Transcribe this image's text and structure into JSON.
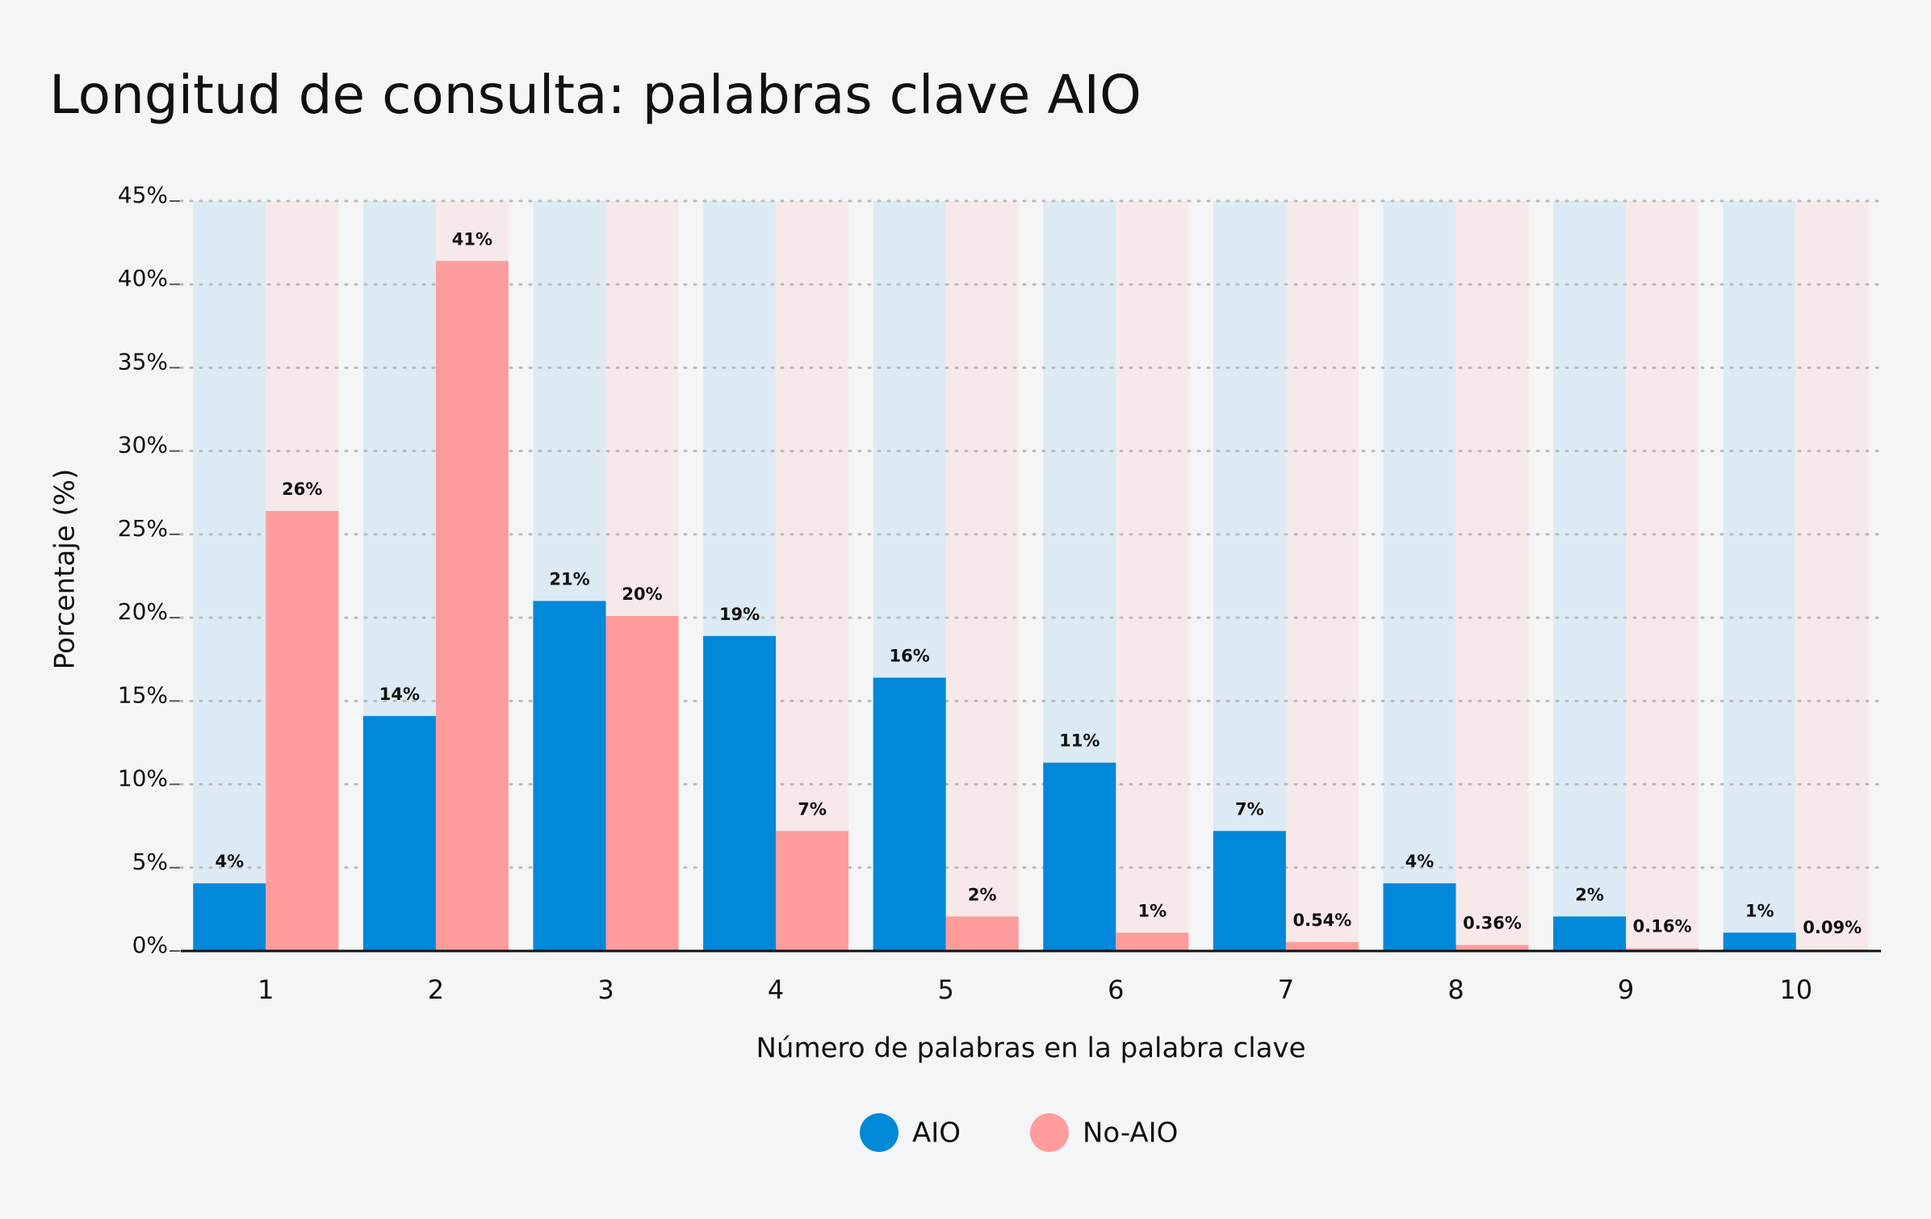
{
  "chart_data": {
    "type": "bar",
    "title": "Longitud de consulta: palabras clave AIO",
    "x_label": "Número de palabras en la palabra clave",
    "y_label": "Porcentaje (%)",
    "categories": [
      "1",
      "2",
      "3",
      "4",
      "5",
      "6",
      "7",
      "8",
      "9",
      "10"
    ],
    "series": [
      {
        "name": "AIO",
        "color": "#0288d9",
        "band_color": "#dceaf3",
        "values": [
          4.06,
          14.1,
          21.0,
          18.9,
          16.4,
          11.3,
          7.2,
          4.06,
          2.07,
          1.1
        ],
        "value_labels": [
          "4%",
          "14%",
          "21%",
          "19%",
          "16%",
          "11%",
          "7%",
          "4%",
          "2%",
          "1%"
        ]
      },
      {
        "name": "No-AIO",
        "color": "#ff9c9c",
        "band_color": "#f7e9ea",
        "values": [
          26.4,
          41.4,
          20.1,
          7.2,
          2.07,
          1.1,
          0.54,
          0.36,
          0.16,
          0.09
        ],
        "value_labels": [
          "26%",
          "41%",
          "20%",
          "7%",
          "2%",
          "1%",
          "0.54%",
          "0.36%",
          "0.16%",
          "0.09%"
        ]
      }
    ],
    "ylim": [
      0,
      45
    ],
    "yticks": [
      {
        "value": 0,
        "label": "0%"
      },
      {
        "value": 5,
        "label": "5%"
      },
      {
        "value": 10,
        "label": "10%"
      },
      {
        "value": 15,
        "label": "15%"
      },
      {
        "value": 20,
        "label": "20%"
      },
      {
        "value": 25,
        "label": "25%"
      },
      {
        "value": 30,
        "label": "30%"
      },
      {
        "value": 35,
        "label": "35%"
      },
      {
        "value": 40,
        "label": "40%"
      },
      {
        "value": 45,
        "label": "45%"
      }
    ],
    "grid": true,
    "legend": "bottom"
  }
}
